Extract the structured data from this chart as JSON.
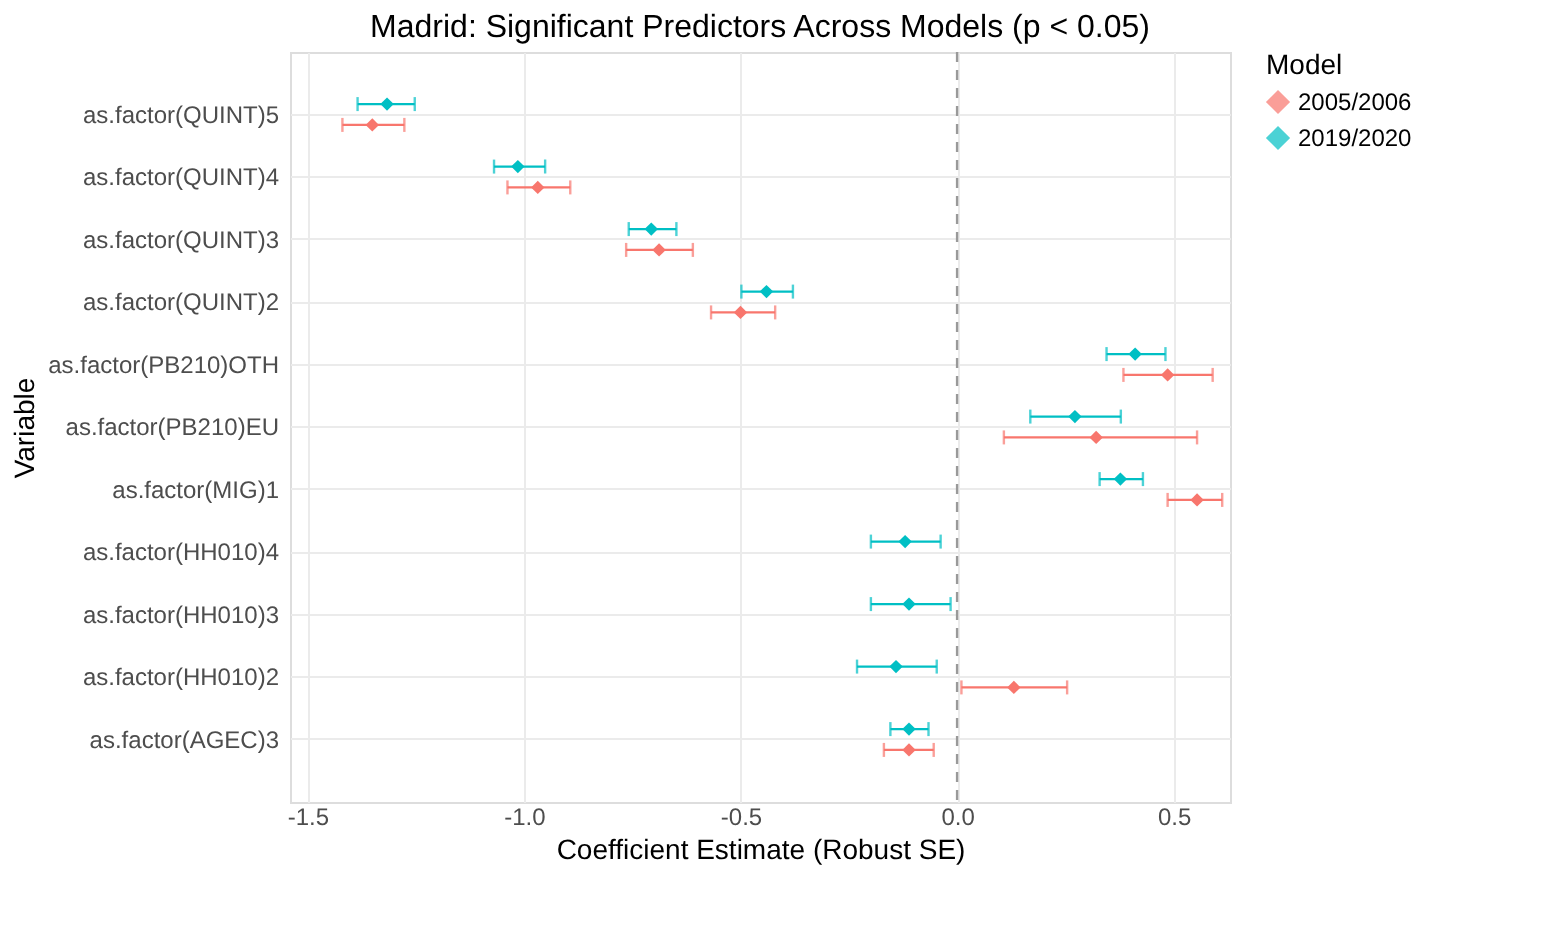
{
  "chart_data": {
    "type": "scatter",
    "orientation": "horizontal",
    "title": "Madrid: Significant Predictors Across Models (p < 0.05)",
    "xlabel": "Coefficient Estimate (Robust SE)",
    "ylabel": "Variable",
    "legend_title": "Model",
    "legend": "right",
    "grid": true,
    "marker": "diamond",
    "categories": [
      "as.factor(QUINT)5",
      "as.factor(QUINT)4",
      "as.factor(QUINT)3",
      "as.factor(QUINT)2",
      "as.factor(PB210)OTH",
      "as.factor(PB210)EU",
      "as.factor(MIG)1",
      "as.factor(HH010)4",
      "as.factor(HH010)3",
      "as.factor(HH010)2",
      "as.factor(AGEC)3"
    ],
    "xlim": [
      -1.54,
      0.63
    ],
    "xticks": [
      {
        "value": -1.5,
        "label": "-1.5"
      },
      {
        "value": -1.0,
        "label": "-1.0"
      },
      {
        "value": -0.5,
        "label": "-0.5"
      },
      {
        "value": 0.0,
        "label": "0.0"
      },
      {
        "value": 0.5,
        "label": "0.5"
      }
    ],
    "series": [
      {
        "name": "2005/2006",
        "color": "#f8766d",
        "values": [
          -1.35,
          -0.968,
          -0.688,
          -0.5,
          0.486,
          0.321,
          0.554,
          null,
          null,
          0.131,
          -0.111
        ],
        "errors": [
          [
            -1.419,
            -1.276
          ],
          [
            -1.038,
            -0.893
          ],
          [
            -0.764,
            -0.61
          ],
          [
            -0.568,
            -0.42
          ],
          [
            0.384,
            0.59
          ],
          [
            0.108,
            0.554
          ],
          [
            0.486,
            0.612
          ],
          null,
          null,
          [
            0.01,
            0.254
          ],
          [
            -0.169,
            -0.054
          ]
        ]
      },
      {
        "name": "2019/2020",
        "color": "#00bfc4",
        "values": [
          -1.316,
          -1.014,
          -0.706,
          -0.44,
          0.411,
          0.272,
          0.377,
          -0.12,
          -0.111,
          -0.141,
          -0.111
        ],
        "errors": [
          [
            -1.384,
            -1.252
          ],
          [
            -1.069,
            -0.951
          ],
          [
            -0.758,
            -0.648
          ],
          [
            -0.498,
            -0.379
          ],
          [
            0.345,
            0.481
          ],
          [
            0.169,
            0.378
          ],
          [
            0.329,
            0.429
          ],
          [
            -0.199,
            -0.038
          ],
          [
            -0.199,
            -0.015
          ],
          [
            -0.231,
            -0.047
          ],
          [
            -0.154,
            -0.066
          ]
        ]
      }
    ],
    "ref_lines": [
      {
        "axis": "x",
        "value": 0.0,
        "line_style": "dashed",
        "color": "#999999"
      }
    ]
  }
}
